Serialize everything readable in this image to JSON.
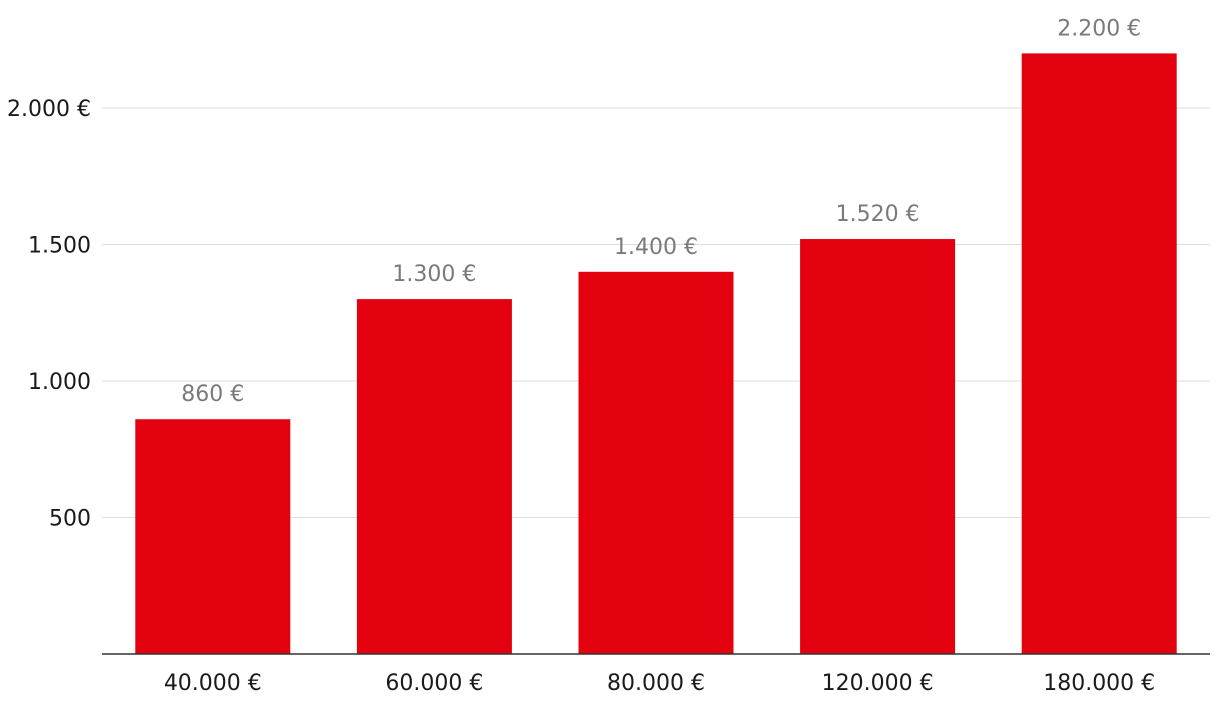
{
  "chart_data": {
    "type": "bar",
    "title": "",
    "xlabel": "",
    "ylabel": "",
    "categories": [
      "40.000 €",
      "60.000 €",
      "80.000 €",
      "120.000 €",
      "180.000 €"
    ],
    "values": [
      860,
      1300,
      1400,
      1520,
      2200
    ],
    "value_labels": [
      "860 €",
      "1.300 €",
      "1.400 €",
      "1.520 €",
      "2.200 €"
    ],
    "ylim": [
      0,
      2200
    ],
    "yticks": [
      500,
      1000,
      1500,
      2000
    ],
    "ytick_labels": [
      "500",
      "1.000",
      "1.500",
      "2.000 €"
    ],
    "grid": true,
    "legend": "none",
    "colors": {
      "bar": "#e3000f",
      "data_label": "#7a7a7a",
      "tick_label": "#1a1a1a",
      "grid": "#dddddd",
      "axis": "#333333"
    }
  }
}
